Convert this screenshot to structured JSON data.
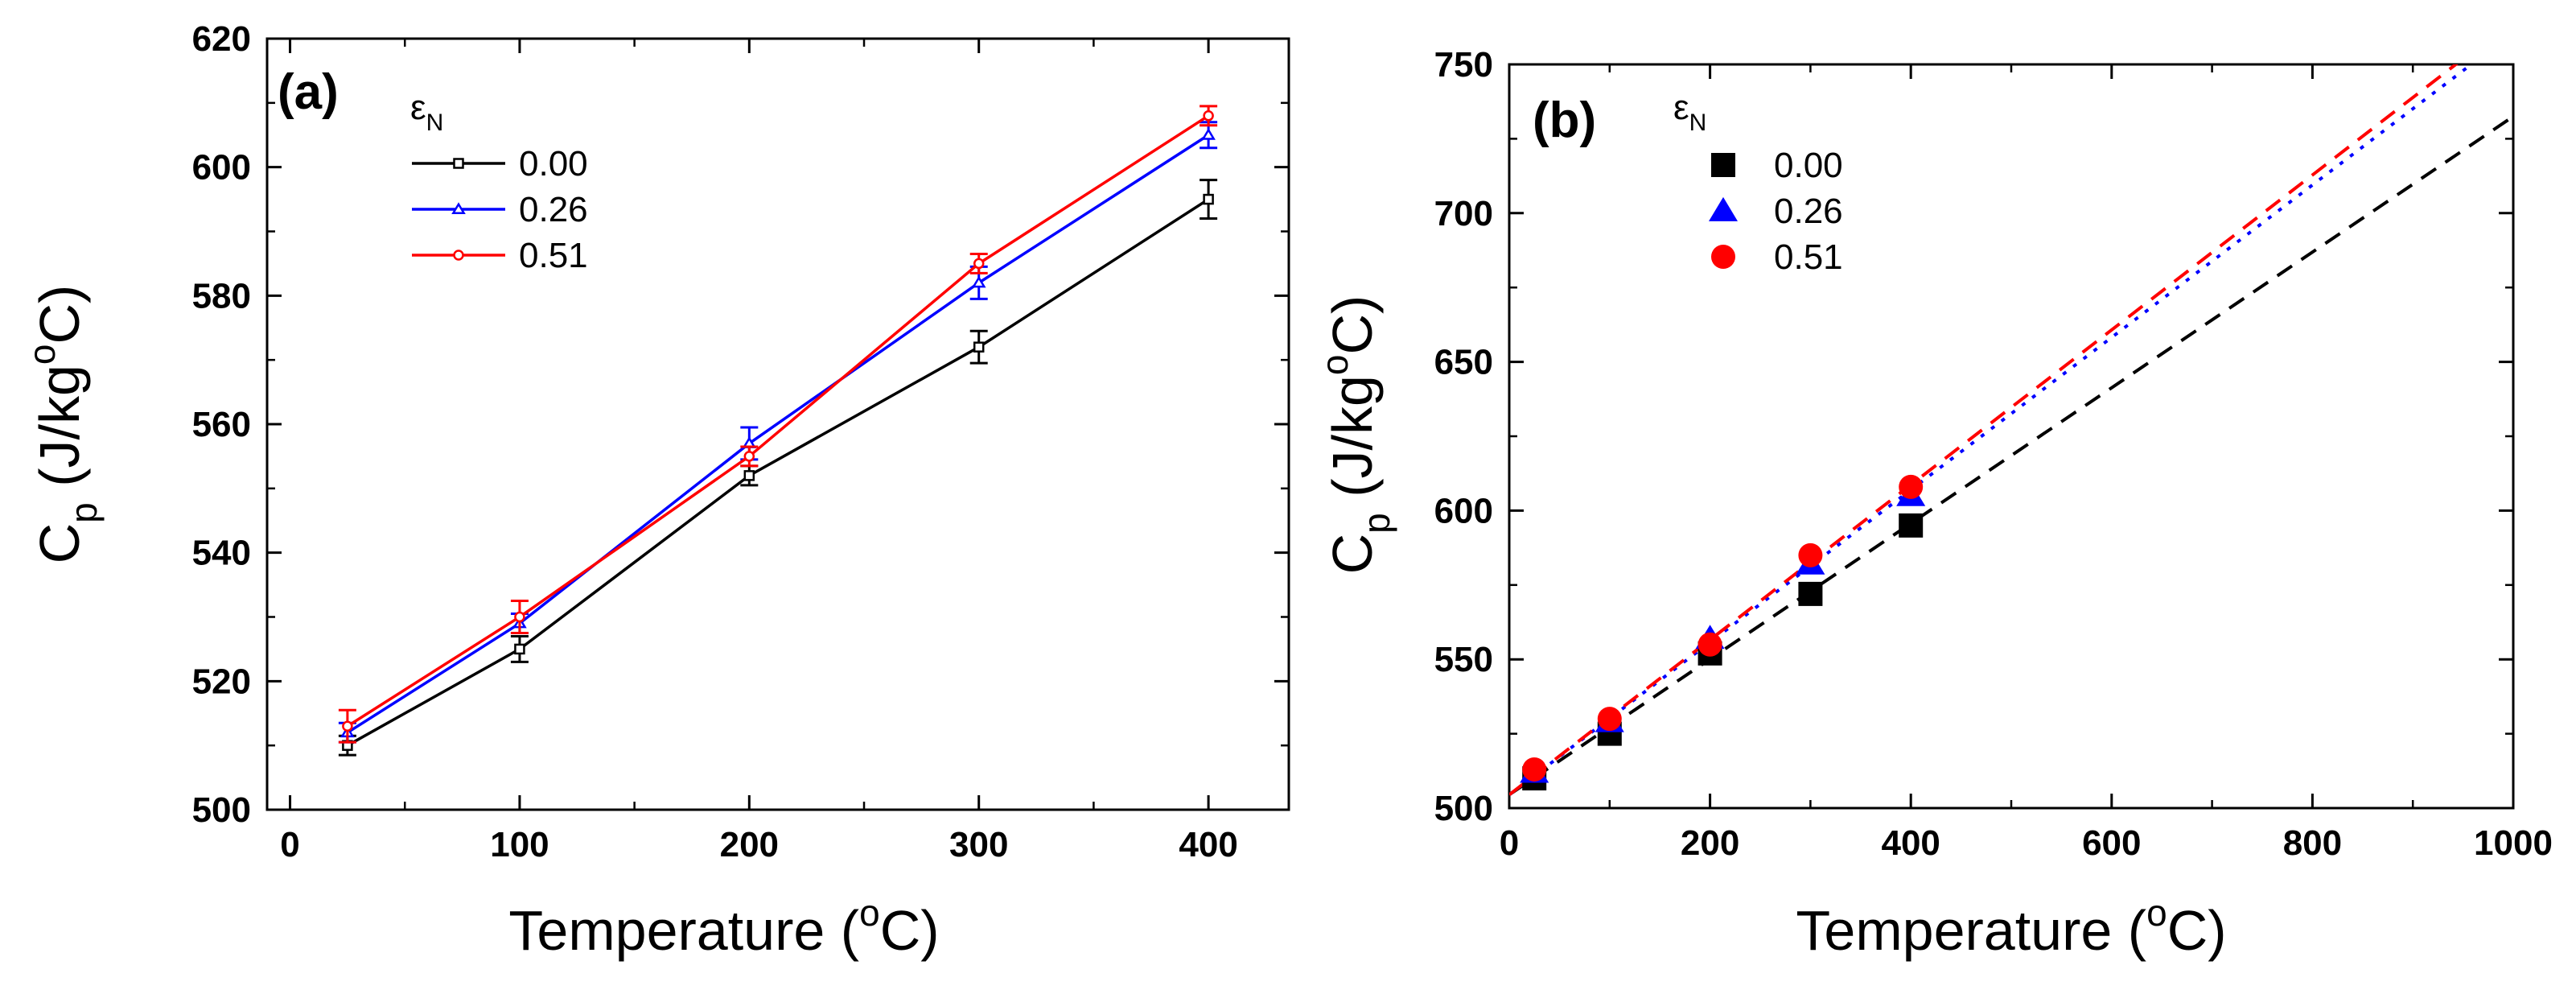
{
  "chart_data": [
    {
      "type": "line",
      "panel_label": "(a)",
      "xlabel": "Temperature (°C)",
      "ylabel": "Cp (J/kg°C)",
      "xlim": [
        -10,
        435
      ],
      "ylim": [
        500,
        620
      ],
      "xticks": [
        0,
        100,
        200,
        300,
        400
      ],
      "yticks": [
        500,
        520,
        540,
        560,
        580,
        600,
        620
      ],
      "legend_title": "εN",
      "legend_position": "top-left",
      "x": [
        25,
        100,
        200,
        300,
        400
      ],
      "series": [
        {
          "name": "0.00",
          "color": "#000000",
          "marker": "square",
          "values": [
            510,
            525,
            552,
            572,
            595
          ],
          "errors": [
            1.5,
            2,
            1.5,
            2.5,
            3
          ]
        },
        {
          "name": "0.26",
          "color": "#0000ff",
          "marker": "triangle",
          "values": [
            512,
            529,
            557,
            582,
            605
          ],
          "errors": [
            1.5,
            1.5,
            2.5,
            2.5,
            2
          ]
        },
        {
          "name": "0.51",
          "color": "#ff0000",
          "marker": "circle",
          "values": [
            513,
            530,
            555,
            585,
            608
          ],
          "errors": [
            2.5,
            2.5,
            1.5,
            1.5,
            1.5
          ]
        }
      ]
    },
    {
      "type": "scatter",
      "panel_label": "(b)",
      "xlabel": "Temperature (°C)",
      "ylabel": "Cp (J/kg°C)",
      "xlim": [
        0,
        1000
      ],
      "ylim": [
        500,
        750
      ],
      "xticks": [
        0,
        200,
        400,
        600,
        800,
        1000
      ],
      "yticks": [
        500,
        550,
        600,
        650,
        700,
        750
      ],
      "legend_title": "εN",
      "legend_position": "top-left",
      "x": [
        25,
        100,
        200,
        300,
        400
      ],
      "series": [
        {
          "name": "0.00",
          "color": "#000000",
          "marker": "square",
          "values": [
            510,
            525,
            552,
            572,
            595
          ],
          "fit": [
            504.5,
            0.228
          ],
          "fit_style": "dashed"
        },
        {
          "name": "0.26",
          "color": "#0000ff",
          "marker": "triangle",
          "values": [
            512,
            529,
            557,
            582,
            605
          ],
          "fit": [
            504.5,
            0.2562
          ],
          "fit_style": "dotted"
        },
        {
          "name": "0.51",
          "color": "#ff0000",
          "marker": "circle",
          "values": [
            513,
            530,
            555,
            585,
            608
          ],
          "fit": [
            504.5,
            0.2604
          ],
          "fit_style": "dashed"
        }
      ]
    }
  ]
}
